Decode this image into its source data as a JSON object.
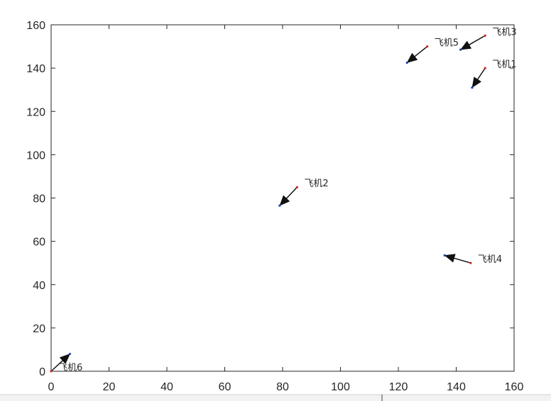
{
  "colors": {
    "axis": "#262626",
    "arrow": "#111111",
    "start_point": "#d62728",
    "end_point": "#1f3fbf",
    "background": "#ffffff"
  },
  "chart_data": {
    "type": "scatter",
    "title": "",
    "xlabel": "",
    "ylabel": "",
    "xlim": [
      0,
      160
    ],
    "ylim": [
      0,
      160
    ],
    "xticks": [
      "0",
      "20",
      "40",
      "60",
      "80",
      "100",
      "120",
      "140",
      "160"
    ],
    "yticks": [
      "0",
      "20",
      "40",
      "60",
      "80",
      "100",
      "120",
      "140",
      "160"
    ],
    "grid": false,
    "box": true,
    "series": [
      {
        "name": "飞机1",
        "start": [
          150,
          140
        ],
        "end": [
          145.5,
          131
        ]
      },
      {
        "name": "飞机2",
        "start": [
          85,
          85
        ],
        "end": [
          79,
          76.5
        ]
      },
      {
        "name": "飞机3",
        "start": [
          150,
          155
        ],
        "end": [
          141.5,
          148.5
        ]
      },
      {
        "name": "飞机4",
        "start": [
          145,
          50
        ],
        "end": [
          136,
          53.5
        ]
      },
      {
        "name": "飞机5",
        "start": [
          130,
          150
        ],
        "end": [
          123,
          142.5
        ]
      },
      {
        "name": "飞机6",
        "start": [
          0,
          0
        ],
        "end": [
          6.5,
          8
        ]
      }
    ]
  }
}
